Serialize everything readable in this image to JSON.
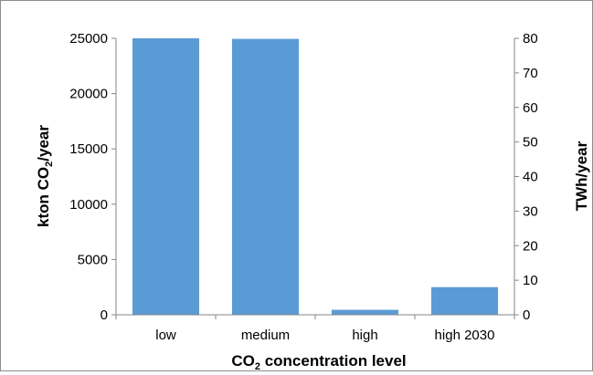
{
  "chart_data": {
    "type": "bar",
    "categories": [
      "low",
      "medium",
      "high",
      "high 2030"
    ],
    "series": [
      {
        "values": [
          25000,
          24950,
          450,
          2500
        ]
      }
    ],
    "bar_color": "#5b9bd5",
    "xlabel": {
      "main": "CO",
      "sub": "2",
      "rest": " concentration level"
    },
    "ylabel_left": {
      "main": "kton CO",
      "sub": "2",
      "rest": "/year"
    },
    "ylabel_right": "TWh/year",
    "ylim_left": [
      0,
      25000
    ],
    "ylim_right": [
      0,
      80
    ],
    "yticks_left": [
      "0",
      "5000",
      "10000",
      "15000",
      "20000",
      "25000"
    ],
    "yticks_right": [
      "0",
      "10",
      "20",
      "30",
      "40",
      "50",
      "60",
      "70",
      "80"
    ],
    "grid": false,
    "legend": "none"
  }
}
